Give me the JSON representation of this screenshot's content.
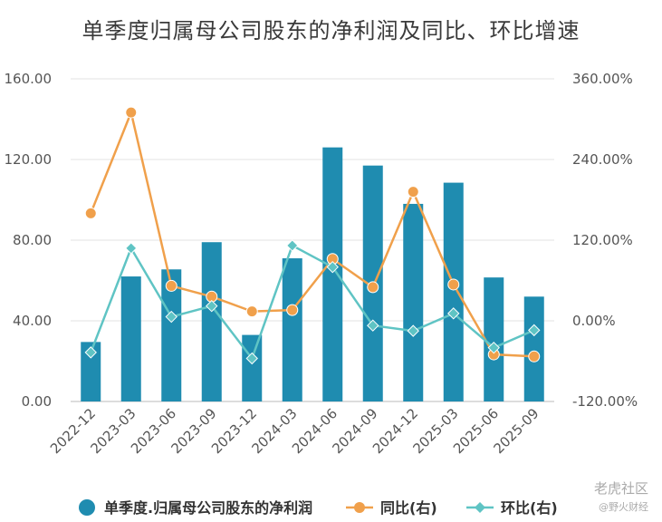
{
  "chart_data": {
    "type": "bar",
    "title": "单季度归属母公司股东的净利润及同比、环比增速",
    "categories": [
      "2022-12",
      "2023-03",
      "2023-06",
      "2023-09",
      "2023-12",
      "2024-03",
      "2024-06",
      "2024-09",
      "2024-12",
      "2025-03",
      "2025-06",
      "2025-09"
    ],
    "left_axis": {
      "ylim": [
        0,
        160
      ],
      "ticks": [
        "0.00",
        "40.00",
        "80.00",
        "120.00",
        "160.00"
      ]
    },
    "right_axis": {
      "ylim": [
        -120,
        360
      ],
      "ticks": [
        "-120.00%",
        "0.00%",
        "120.00%",
        "240.00%",
        "360.00%"
      ]
    },
    "series": [
      {
        "name": "单季度.归属母公司股东的净利润",
        "type": "bar",
        "axis": "left",
        "color": "#1f8cb0",
        "values": [
          29.5,
          62,
          65.5,
          79,
          33,
          71,
          126,
          117,
          98,
          108.5,
          61.5,
          52
        ]
      },
      {
        "name": "同比(右)",
        "type": "line",
        "axis": "right",
        "color": "#f0a04b",
        "values": [
          160,
          310,
          52,
          36,
          14,
          16,
          92,
          50,
          192,
          54,
          -50,
          -53
        ]
      },
      {
        "name": "环比(右)",
        "type": "line",
        "axis": "right",
        "color": "#5fc4c4",
        "values": [
          -47,
          108,
          6,
          22,
          -56,
          112,
          80,
          -7,
          -15,
          11,
          -40,
          -14
        ]
      }
    ],
    "grid": true,
    "legend": "bottom"
  },
  "watermark": {
    "cn_text": "老虎社区",
    "sub_text": "@野火财经"
  }
}
